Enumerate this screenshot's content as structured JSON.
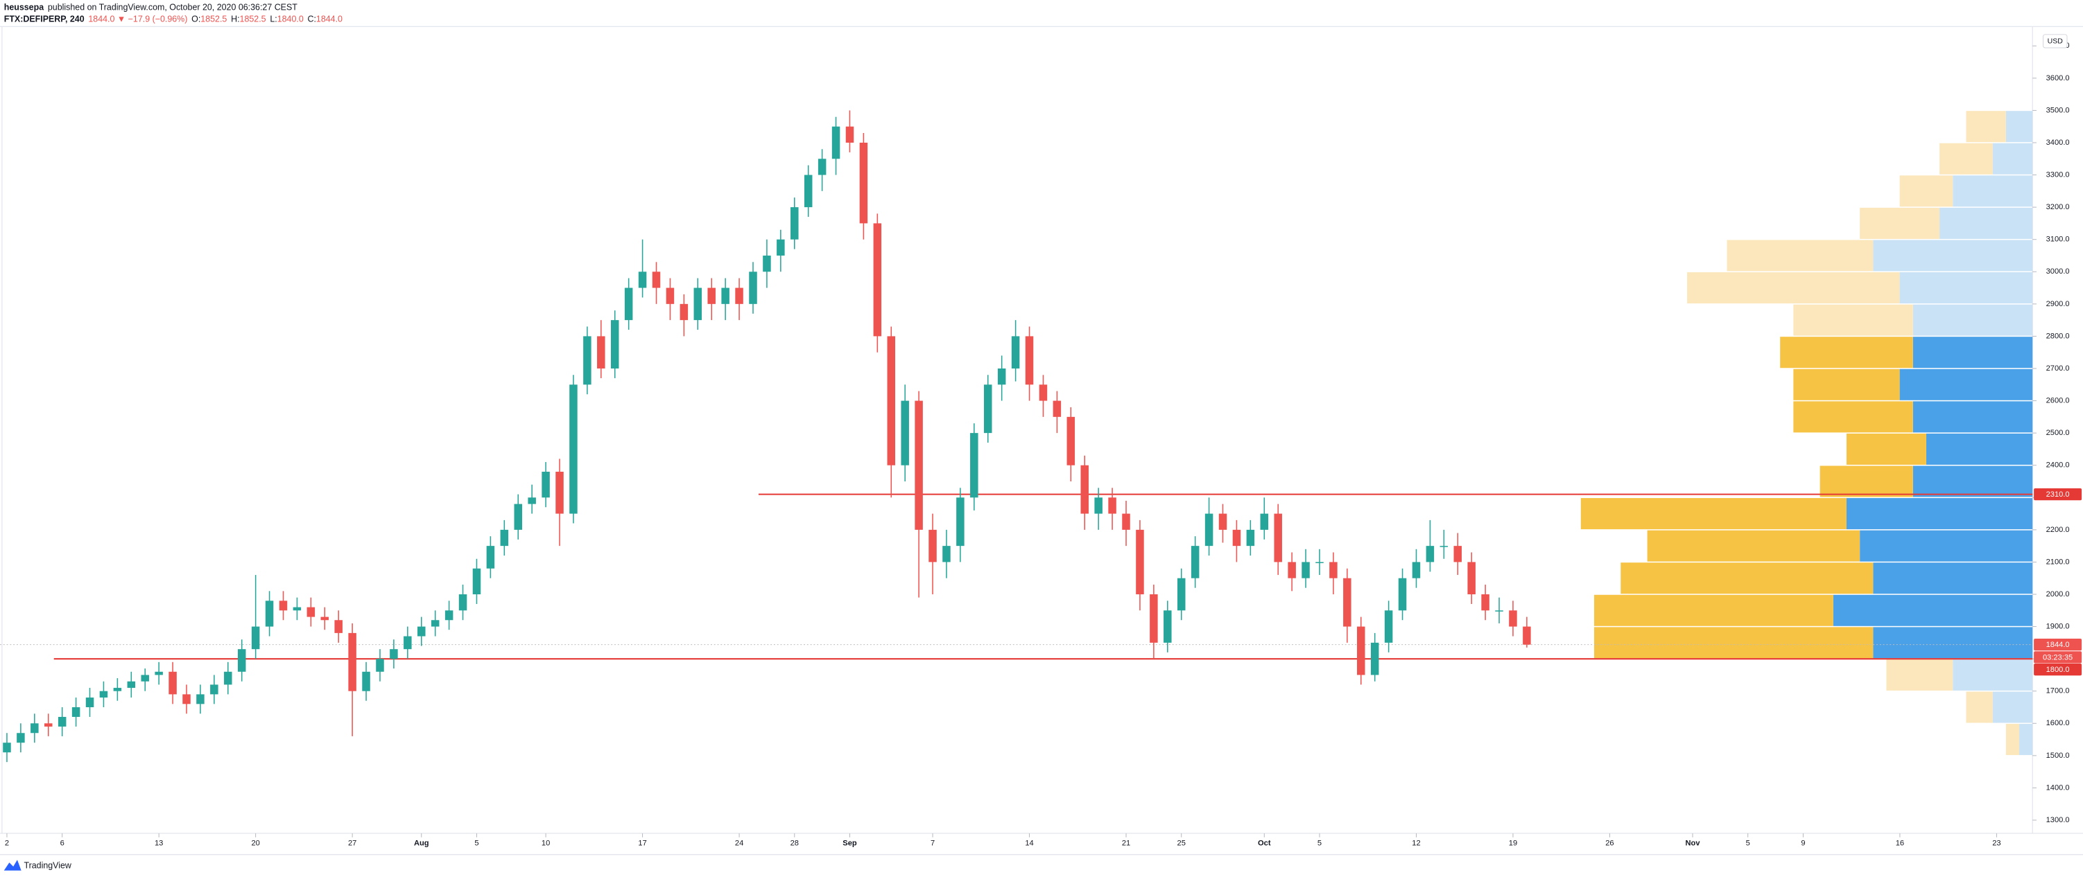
{
  "header": {
    "author": "heussepa",
    "published": "published on TradingView.com, October 20, 2020 06:36:27 CEST",
    "symbol": "FTX:DEFIPERP, 240",
    "change": "1844.0 ▼ −17.9 (−0.96%)",
    "ohlc": [
      {
        "label": "O:",
        "value": "1852.5"
      },
      {
        "label": "H:",
        "value": "1852.5"
      },
      {
        "label": "L:",
        "value": "1840.0"
      },
      {
        "label": "C:",
        "value": "1844.0"
      }
    ]
  },
  "footer": {
    "brand": "TradingView"
  },
  "chart_data": {
    "type": "candlestick",
    "currency": "USD",
    "open": [
      1510,
      1540,
      1570,
      1600,
      1590,
      1620,
      1650,
      1680,
      1700,
      1710,
      1730,
      1750,
      1760,
      1690,
      1660,
      1690,
      1720,
      1760,
      1830,
      1900,
      1980,
      1950,
      1960,
      1930,
      1920,
      1880,
      1700,
      1760,
      1800,
      1830,
      1870,
      1900,
      1920,
      1950,
      2000,
      2080,
      2150,
      2200,
      2280,
      2300,
      2380,
      2250,
      2650,
      2800,
      2700,
      2850,
      2950,
      3000,
      2950,
      2900,
      2850,
      2950,
      2900,
      2950,
      2900,
      3000,
      3050,
      3100,
      3200,
      3300,
      3350,
      3450,
      3400,
      3150,
      2800,
      2400,
      2600,
      2200,
      2100,
      2150,
      2300,
      2500,
      2650,
      2700,
      2800,
      2650,
      2600,
      2550,
      2400,
      2250,
      2300,
      2250,
      2200,
      2000,
      1850,
      1950,
      2050,
      2150,
      2250,
      2200,
      2150,
      2200,
      2250,
      2100,
      2050,
      2100,
      2100,
      2050,
      1900,
      1750,
      1850,
      1950,
      2050,
      2100,
      2150,
      2150,
      2100,
      2000,
      1950,
      1950,
      1900
    ],
    "high": [
      1570,
      1600,
      1630,
      1630,
      1650,
      1680,
      1710,
      1730,
      1740,
      1760,
      1770,
      1790,
      1790,
      1720,
      1720,
      1750,
      1790,
      1860,
      2060,
      2010,
      2010,
      1990,
      1990,
      1960,
      1950,
      1910,
      1790,
      1830,
      1860,
      1900,
      1930,
      1950,
      1980,
      2030,
      2110,
      2180,
      2230,
      2310,
      2340,
      2410,
      2420,
      2680,
      2830,
      2850,
      2880,
      2980,
      3100,
      3030,
      2980,
      2930,
      2980,
      2980,
      2980,
      2980,
      3030,
      3100,
      3130,
      3230,
      3330,
      3380,
      3480,
      3500,
      3430,
      3180,
      2830,
      2650,
      2630,
      2250,
      2200,
      2330,
      2530,
      2680,
      2740,
      2850,
      2830,
      2680,
      2630,
      2580,
      2430,
      2330,
      2330,
      2290,
      2230,
      2030,
      1980,
      2080,
      2180,
      2300,
      2280,
      2230,
      2230,
      2300,
      2280,
      2130,
      2140,
      2140,
      2130,
      2080,
      1930,
      1880,
      1980,
      2080,
      2140,
      2230,
      2200,
      2190,
      2130,
      2030,
      1990,
      1980,
      1930
    ],
    "low": [
      1480,
      1510,
      1540,
      1560,
      1560,
      1590,
      1620,
      1650,
      1670,
      1680,
      1700,
      1720,
      1660,
      1630,
      1630,
      1660,
      1690,
      1730,
      1800,
      1870,
      1920,
      1920,
      1900,
      1890,
      1850,
      1560,
      1670,
      1730,
      1770,
      1800,
      1840,
      1870,
      1890,
      1920,
      1970,
      2050,
      2120,
      2170,
      2250,
      2270,
      2150,
      2220,
      2620,
      2670,
      2670,
      2820,
      2920,
      2900,
      2850,
      2800,
      2820,
      2850,
      2850,
      2850,
      2870,
      2950,
      3000,
      3070,
      3170,
      3250,
      3300,
      3370,
      3100,
      2750,
      2300,
      2350,
      1990,
      2000,
      2050,
      2100,
      2260,
      2470,
      2600,
      2660,
      2600,
      2550,
      2500,
      2350,
      2200,
      2200,
      2200,
      2150,
      1950,
      1800,
      1820,
      1920,
      2020,
      2120,
      2160,
      2100,
      2120,
      2170,
      2060,
      2010,
      2020,
      2060,
      2000,
      1850,
      1720,
      1730,
      1820,
      1920,
      2020,
      2070,
      2110,
      2060,
      1970,
      1920,
      1910,
      1870,
      1835
    ],
    "close": [
      1540,
      1570,
      1600,
      1590,
      1620,
      1650,
      1680,
      1700,
      1710,
      1730,
      1750,
      1760,
      1690,
      1660,
      1690,
      1720,
      1760,
      1830,
      1900,
      1980,
      1950,
      1960,
      1930,
      1920,
      1880,
      1700,
      1760,
      1800,
      1830,
      1870,
      1900,
      1920,
      1950,
      2000,
      2080,
      2150,
      2200,
      2280,
      2300,
      2380,
      2250,
      2650,
      2800,
      2700,
      2850,
      2950,
      3000,
      2950,
      2900,
      2850,
      2950,
      2900,
      2950,
      2900,
      3000,
      3050,
      3100,
      3200,
      3300,
      3350,
      3450,
      3400,
      3150,
      2800,
      2400,
      2600,
      2200,
      2100,
      2150,
      2300,
      2500,
      2650,
      2700,
      2800,
      2650,
      2600,
      2550,
      2400,
      2250,
      2300,
      2250,
      2200,
      2000,
      1850,
      1950,
      2050,
      2150,
      2250,
      2200,
      2150,
      2200,
      2250,
      2100,
      2050,
      2100,
      2100,
      2050,
      1900,
      1750,
      1850,
      1950,
      2050,
      2100,
      2150,
      2150,
      2100,
      2000,
      1950,
      1950,
      1900,
      1844
    ],
    "up_color": "#26a69a",
    "down_color": "#ef5350",
    "xlim": [
      -0.5,
      146.6
    ],
    "xticks": [
      {
        "value": 0,
        "label": "2"
      },
      {
        "value": 4,
        "label": "6"
      },
      {
        "value": 11,
        "label": "13"
      },
      {
        "value": 18,
        "label": "20"
      },
      {
        "value": 25,
        "label": "27"
      },
      {
        "value": 30,
        "label": "Aug"
      },
      {
        "value": 34,
        "label": "5"
      },
      {
        "value": 39,
        "label": "10"
      },
      {
        "value": 46,
        "label": "17"
      },
      {
        "value": 53,
        "label": "24"
      },
      {
        "value": 57,
        "label": "28"
      },
      {
        "value": 61,
        "label": "Sep"
      },
      {
        "value": 67,
        "label": "7"
      },
      {
        "value": 74,
        "label": "14"
      },
      {
        "value": 81,
        "label": "21"
      },
      {
        "value": 85,
        "label": "25"
      },
      {
        "value": 91,
        "label": "Oct"
      },
      {
        "value": 95,
        "label": "5"
      },
      {
        "value": 102,
        "label": "12"
      },
      {
        "value": 109,
        "label": "19"
      },
      {
        "value": 116,
        "label": "26"
      },
      {
        "value": 122,
        "label": "Nov"
      },
      {
        "value": 126,
        "label": "5"
      },
      {
        "value": 130,
        "label": "9"
      },
      {
        "value": 137,
        "label": "16"
      },
      {
        "value": 144,
        "label": "23"
      }
    ],
    "ylim": [
      1259,
      3760
    ],
    "yticks": [
      {
        "value": 1300,
        "label": "1300.0"
      },
      {
        "value": 1400,
        "label": "1400.0"
      },
      {
        "value": 1500,
        "label": "1500.0"
      },
      {
        "value": 1600,
        "label": "1600.0"
      },
      {
        "value": 1700,
        "label": "1700.0"
      },
      {
        "value": 1800,
        "label": "1800.0"
      },
      {
        "value": 1900,
        "label": "1900.0"
      },
      {
        "value": 2000,
        "label": "2000.0"
      },
      {
        "value": 2100,
        "label": "2100.0"
      },
      {
        "value": 2200,
        "label": "2200.0"
      },
      {
        "value": 2300,
        "label": "2300.0"
      },
      {
        "value": 2400,
        "label": "2400.0"
      },
      {
        "value": 2500,
        "label": "2500.0"
      },
      {
        "value": 2600,
        "label": "2600.0"
      },
      {
        "value": 2700,
        "label": "2700.0"
      },
      {
        "value": 2800,
        "label": "2800.0"
      },
      {
        "value": 2900,
        "label": "2900.0"
      },
      {
        "value": 3000,
        "label": "3000.0"
      },
      {
        "value": 3100,
        "label": "3100.0"
      },
      {
        "value": 3200,
        "label": "3200.0"
      },
      {
        "value": 3300,
        "label": "3300.0"
      },
      {
        "value": 3400,
        "label": "3400.0"
      },
      {
        "value": 3500,
        "label": "3500.0"
      },
      {
        "value": 3600,
        "label": "3600.0"
      },
      {
        "value": 3700,
        "label": "3700.0"
      }
    ],
    "hlines": [
      {
        "value": 2310,
        "label": "2310.0",
        "color": "#e53935"
      },
      {
        "value": 1800,
        "label": "1800.0",
        "color": "#e53935"
      }
    ],
    "last_price": {
      "value": 1844,
      "label": "1844.0",
      "countdown": "03:23:35",
      "color": "#ef5350"
    },
    "volume_profile": {
      "bins": [
        1500,
        1600,
        1700,
        1800,
        1900,
        2000,
        2100,
        2200,
        2300,
        2400,
        2500,
        2600,
        2700,
        2800,
        2900,
        3000,
        3100,
        3200,
        3300,
        3400,
        3500
      ],
      "xlim": [
        0,
        400
      ],
      "value_area": [
        1800,
        2800
      ],
      "series": [
        {
          "color": "#4aa1e8",
          "outside_color": "#c9e2f6",
          "values": [
            10,
            30,
            60,
            120,
            150,
            120,
            130,
            140,
            90,
            80,
            90,
            100,
            90,
            90,
            100,
            120,
            70,
            60,
            30,
            20
          ]
        },
        {
          "color": "#f6c344",
          "outside_color": "#fbe7bb",
          "values": [
            10,
            20,
            50,
            210,
            180,
            190,
            160,
            200,
            70,
            60,
            90,
            80,
            100,
            90,
            160,
            110,
            60,
            40,
            40,
            30
          ]
        }
      ]
    }
  }
}
